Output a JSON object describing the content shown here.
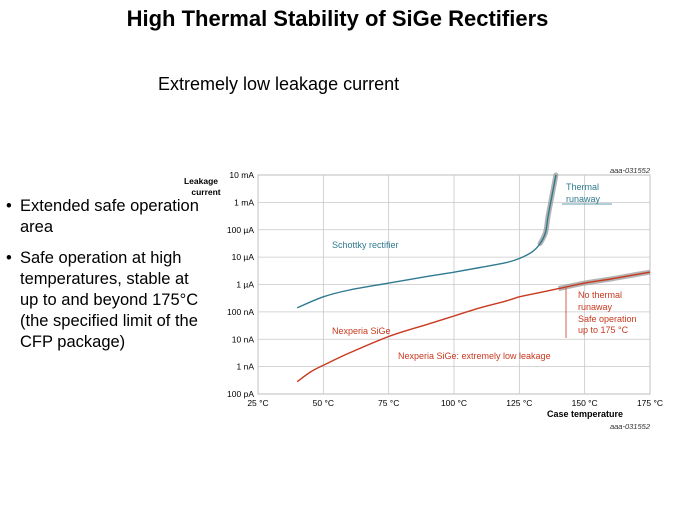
{
  "slide": {
    "title": "High Thermal Stability of SiGe Rectifiers",
    "subtitle": "Extremely low leakage current",
    "bullets": [
      "Extended safe operation area",
      "Safe operation at high temperatures, stable at up to and beyond 175°C (the specified limit of the CFP package)"
    ]
  },
  "chart_data": {
    "type": "line",
    "ylabel": "Leakage current",
    "xlabel": "Case temperature",
    "code_top": "aaa-031552",
    "code_bottom": "aaa-031552",
    "x_ticks": [
      "25 °C",
      "50 °C",
      "75 °C",
      "100 °C",
      "125 °C",
      "150 °C",
      "175 °C"
    ],
    "x_tick_values": [
      25,
      50,
      75,
      100,
      125,
      150,
      175
    ],
    "y_ticks": [
      "100 pA",
      "1 nA",
      "10 nA",
      "100 nA",
      "1 µA",
      "10 µA",
      "100 µA",
      "1 mA",
      "10 mA"
    ],
    "y_tick_exponents": [
      -10,
      -9,
      -8,
      -7,
      -6,
      -5,
      -4,
      -3,
      -2
    ],
    "xlim": [
      25,
      175
    ],
    "ylim_log10": [
      -10,
      -2
    ],
    "grid": true,
    "series": [
      {
        "name": "Schottky rectifier",
        "color": "#2f7a90",
        "x": [
          40,
          50,
          60,
          75,
          90,
          100,
          110,
          120,
          125,
          130,
          133,
          135,
          136,
          137,
          138,
          139
        ],
        "log10_y": [
          -6.85,
          -6.45,
          -6.2,
          -5.95,
          -5.7,
          -5.55,
          -5.38,
          -5.2,
          -5.05,
          -4.8,
          -4.5,
          -4.1,
          -3.5,
          -3.0,
          -2.5,
          -2.0
        ]
      },
      {
        "name": "Nexperia SiGe",
        "color": "#c8391f",
        "x": [
          40,
          45,
          50,
          60,
          75,
          90,
          100,
          110,
          120,
          125,
          130,
          140,
          150,
          160,
          170,
          175
        ],
        "log10_y": [
          -9.55,
          -9.2,
          -8.95,
          -8.5,
          -7.9,
          -7.45,
          -7.15,
          -6.85,
          -6.6,
          -6.45,
          -6.35,
          -6.15,
          -5.95,
          -5.8,
          -5.63,
          -5.55
        ]
      }
    ],
    "annotations": {
      "schottky_label": "Schottky rectifier",
      "thermal_runaway_1": "Thermal",
      "thermal_runaway_2": "runaway",
      "sige_label": "Nexperia SiGe",
      "no_runaway_1": "No thermal",
      "no_runaway_2": "runaway",
      "no_runaway_3": "Safe operation",
      "no_runaway_4": "up to 175 °C",
      "low_leakage": "Nexperia SiGe: extremely low leakage"
    }
  }
}
